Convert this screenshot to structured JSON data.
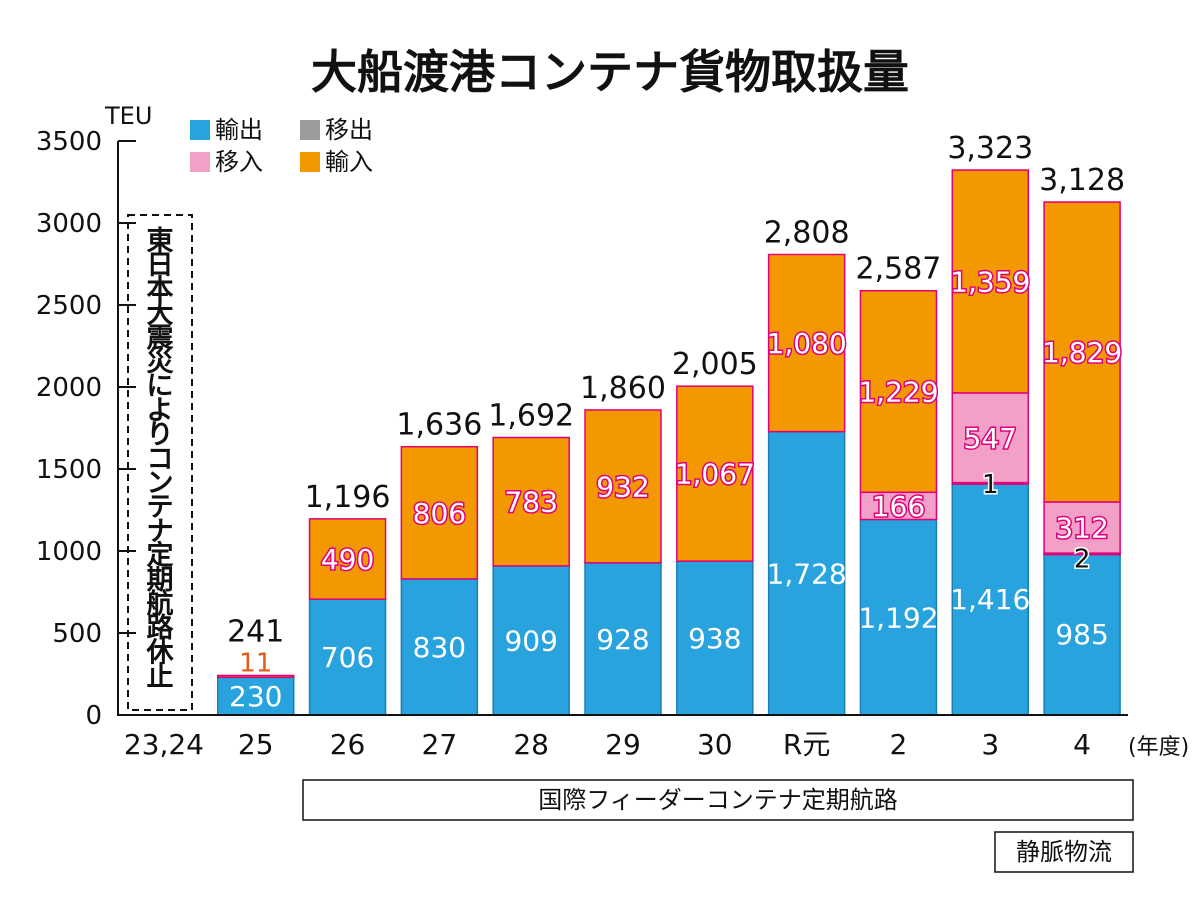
{
  "chart_data": {
    "type": "bar",
    "title": "大船渡港コンテナ貨物取扱量",
    "ylabel": "TEU",
    "x_unit": "(年度)",
    "ylim": [
      0,
      3500
    ],
    "yticks": [
      "0",
      "500",
      "1000",
      "1500",
      "2000",
      "2500",
      "3000",
      "3500"
    ],
    "categories": [
      "23,24",
      "25",
      "26",
      "27",
      "28",
      "29",
      "30",
      "R元",
      "2",
      "3",
      "4"
    ],
    "series": [
      {
        "name": "輸出",
        "color": "#29a3de",
        "values": [
          null,
          230,
          706,
          830,
          909,
          928,
          938,
          1728,
          1192,
          1416,
          985
        ],
        "labels": [
          "",
          "230",
          "706",
          "830",
          "909",
          "928",
          "938",
          "1,728",
          "1,192",
          "1,416",
          "985"
        ]
      },
      {
        "name": "移出",
        "color": "#9b9b9b",
        "values": [
          null,
          0,
          0,
          0,
          0,
          0,
          0,
          0,
          0,
          1,
          2
        ],
        "labels": [
          "",
          "",
          "",
          "",
          "",
          "",
          "",
          "",
          "",
          "1",
          "2"
        ]
      },
      {
        "name": "移入",
        "color": "#f2a0c8",
        "values": [
          null,
          0,
          0,
          0,
          0,
          0,
          0,
          0,
          166,
          547,
          312
        ],
        "labels": [
          "",
          "",
          "",
          "",
          "",
          "",
          "",
          "",
          "166",
          "547",
          "312"
        ]
      },
      {
        "name": "輸入",
        "color": "#f39800",
        "values": [
          null,
          11,
          490,
          806,
          783,
          932,
          1067,
          1080,
          1229,
          1359,
          1829
        ],
        "labels": [
          "",
          "11",
          "490",
          "806",
          "783",
          "932",
          "1,067",
          "1,080",
          "1,229",
          "1,359",
          "1,829"
        ]
      }
    ],
    "totals": [
      "",
      "241",
      "1,196",
      "1,636",
      "1,692",
      "1,860",
      "2,005",
      "2,808",
      "2,587",
      "3,323",
      "3,128"
    ],
    "legend_position": "top-left",
    "annotations": {
      "suspension_note": "東日本大震災によりコンテナ定期航路休止",
      "route_label": "国際フィーダーコンテナ定期航路",
      "source": "静脈物流"
    }
  }
}
